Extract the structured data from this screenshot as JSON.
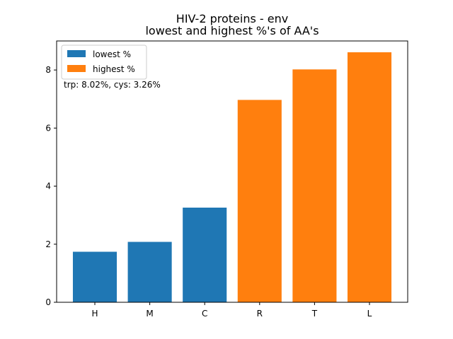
{
  "chart_data": {
    "type": "bar",
    "title": "HIV-2 proteins - env",
    "subtitle": "lowest and highest %'s of AA's",
    "xlabel": "",
    "ylabel": "",
    "ylim": [
      0,
      9
    ],
    "yticks": [
      0,
      2,
      4,
      6,
      8
    ],
    "categories": [
      "H",
      "M",
      "C",
      "R",
      "T",
      "L"
    ],
    "series": [
      {
        "name": "lowest %",
        "color": "#1f77b4",
        "values": [
          1.74,
          2.08,
          3.26,
          null,
          null,
          null
        ]
      },
      {
        "name": "highest %",
        "color": "#ff7f0e",
        "values": [
          null,
          null,
          null,
          6.97,
          8.02,
          8.61
        ]
      }
    ],
    "legend_position": "top-left",
    "annotation": "trp: 8.02%, cys: 3.26%",
    "grid": false
  }
}
